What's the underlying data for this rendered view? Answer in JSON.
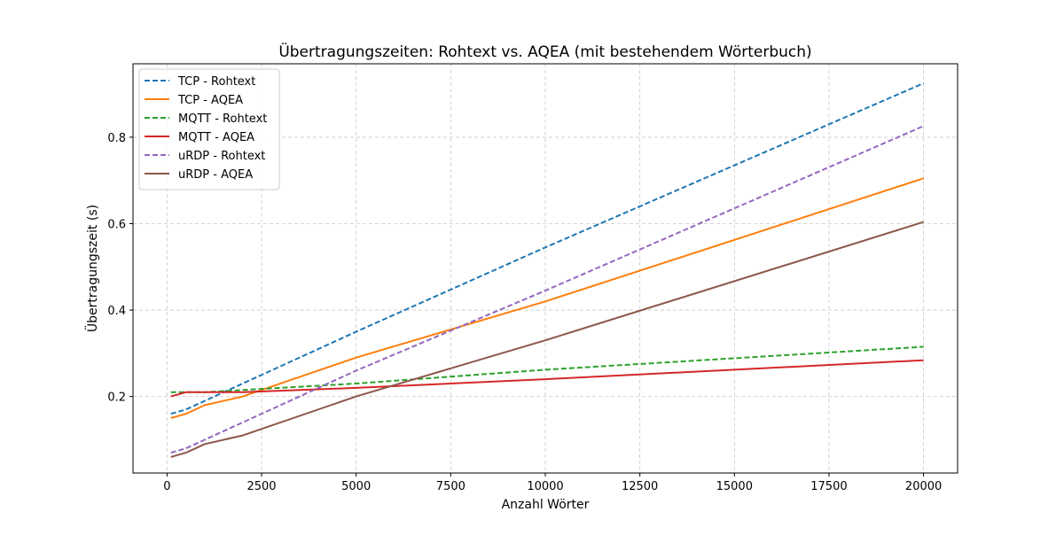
{
  "chart_data": {
    "type": "line",
    "title": "Übertragungszeiten: Rohtext vs. AQEA (mit bestehendem Wörterbuch)",
    "xlabel": "Anzahl Wörter",
    "ylabel": "Übertragungszeit (s)",
    "xlim": [
      -900,
      20900
    ],
    "ylim": [
      0.023,
      0.97
    ],
    "xticks": [
      0,
      2500,
      5000,
      7500,
      10000,
      12500,
      15000,
      17500,
      20000
    ],
    "yticks": [
      0.2,
      0.4,
      0.6,
      0.8
    ],
    "ytick_labels": [
      "0.2",
      "0.4",
      "0.6",
      "0.8"
    ],
    "grid": true,
    "legend_position": "top-left",
    "x": [
      100,
      500,
      1000,
      2000,
      5000,
      10000,
      20000
    ],
    "series": [
      {
        "name": "TCP - Rohtext",
        "color": "#1f77b4",
        "dashed": true,
        "values": [
          0.16,
          0.17,
          0.19,
          0.23,
          0.35,
          0.545,
          0.925
        ]
      },
      {
        "name": "TCP - AQEA",
        "color": "#ff7f0e",
        "dashed": false,
        "values": [
          0.15,
          0.16,
          0.18,
          0.2,
          0.29,
          0.42,
          0.705
        ]
      },
      {
        "name": "MQTT - Rohtext",
        "color": "#2ca02c",
        "dashed": true,
        "values": [
          0.21,
          0.21,
          0.21,
          0.215,
          0.23,
          0.262,
          0.315
        ]
      },
      {
        "name": "MQTT - AQEA",
        "color": "#d62728",
        "dashed": false,
        "values": [
          0.2,
          0.21,
          0.21,
          0.21,
          0.22,
          0.24,
          0.284
        ]
      },
      {
        "name": "uRDP - Rohtext",
        "color": "#9467bd",
        "dashed": true,
        "values": [
          0.07,
          0.08,
          0.1,
          0.14,
          0.26,
          0.445,
          0.826
        ]
      },
      {
        "name": "uRDP - AQEA",
        "color": "#8c564b",
        "dashed": false,
        "values": [
          0.06,
          0.07,
          0.09,
          0.11,
          0.2,
          0.33,
          0.604
        ]
      }
    ]
  }
}
